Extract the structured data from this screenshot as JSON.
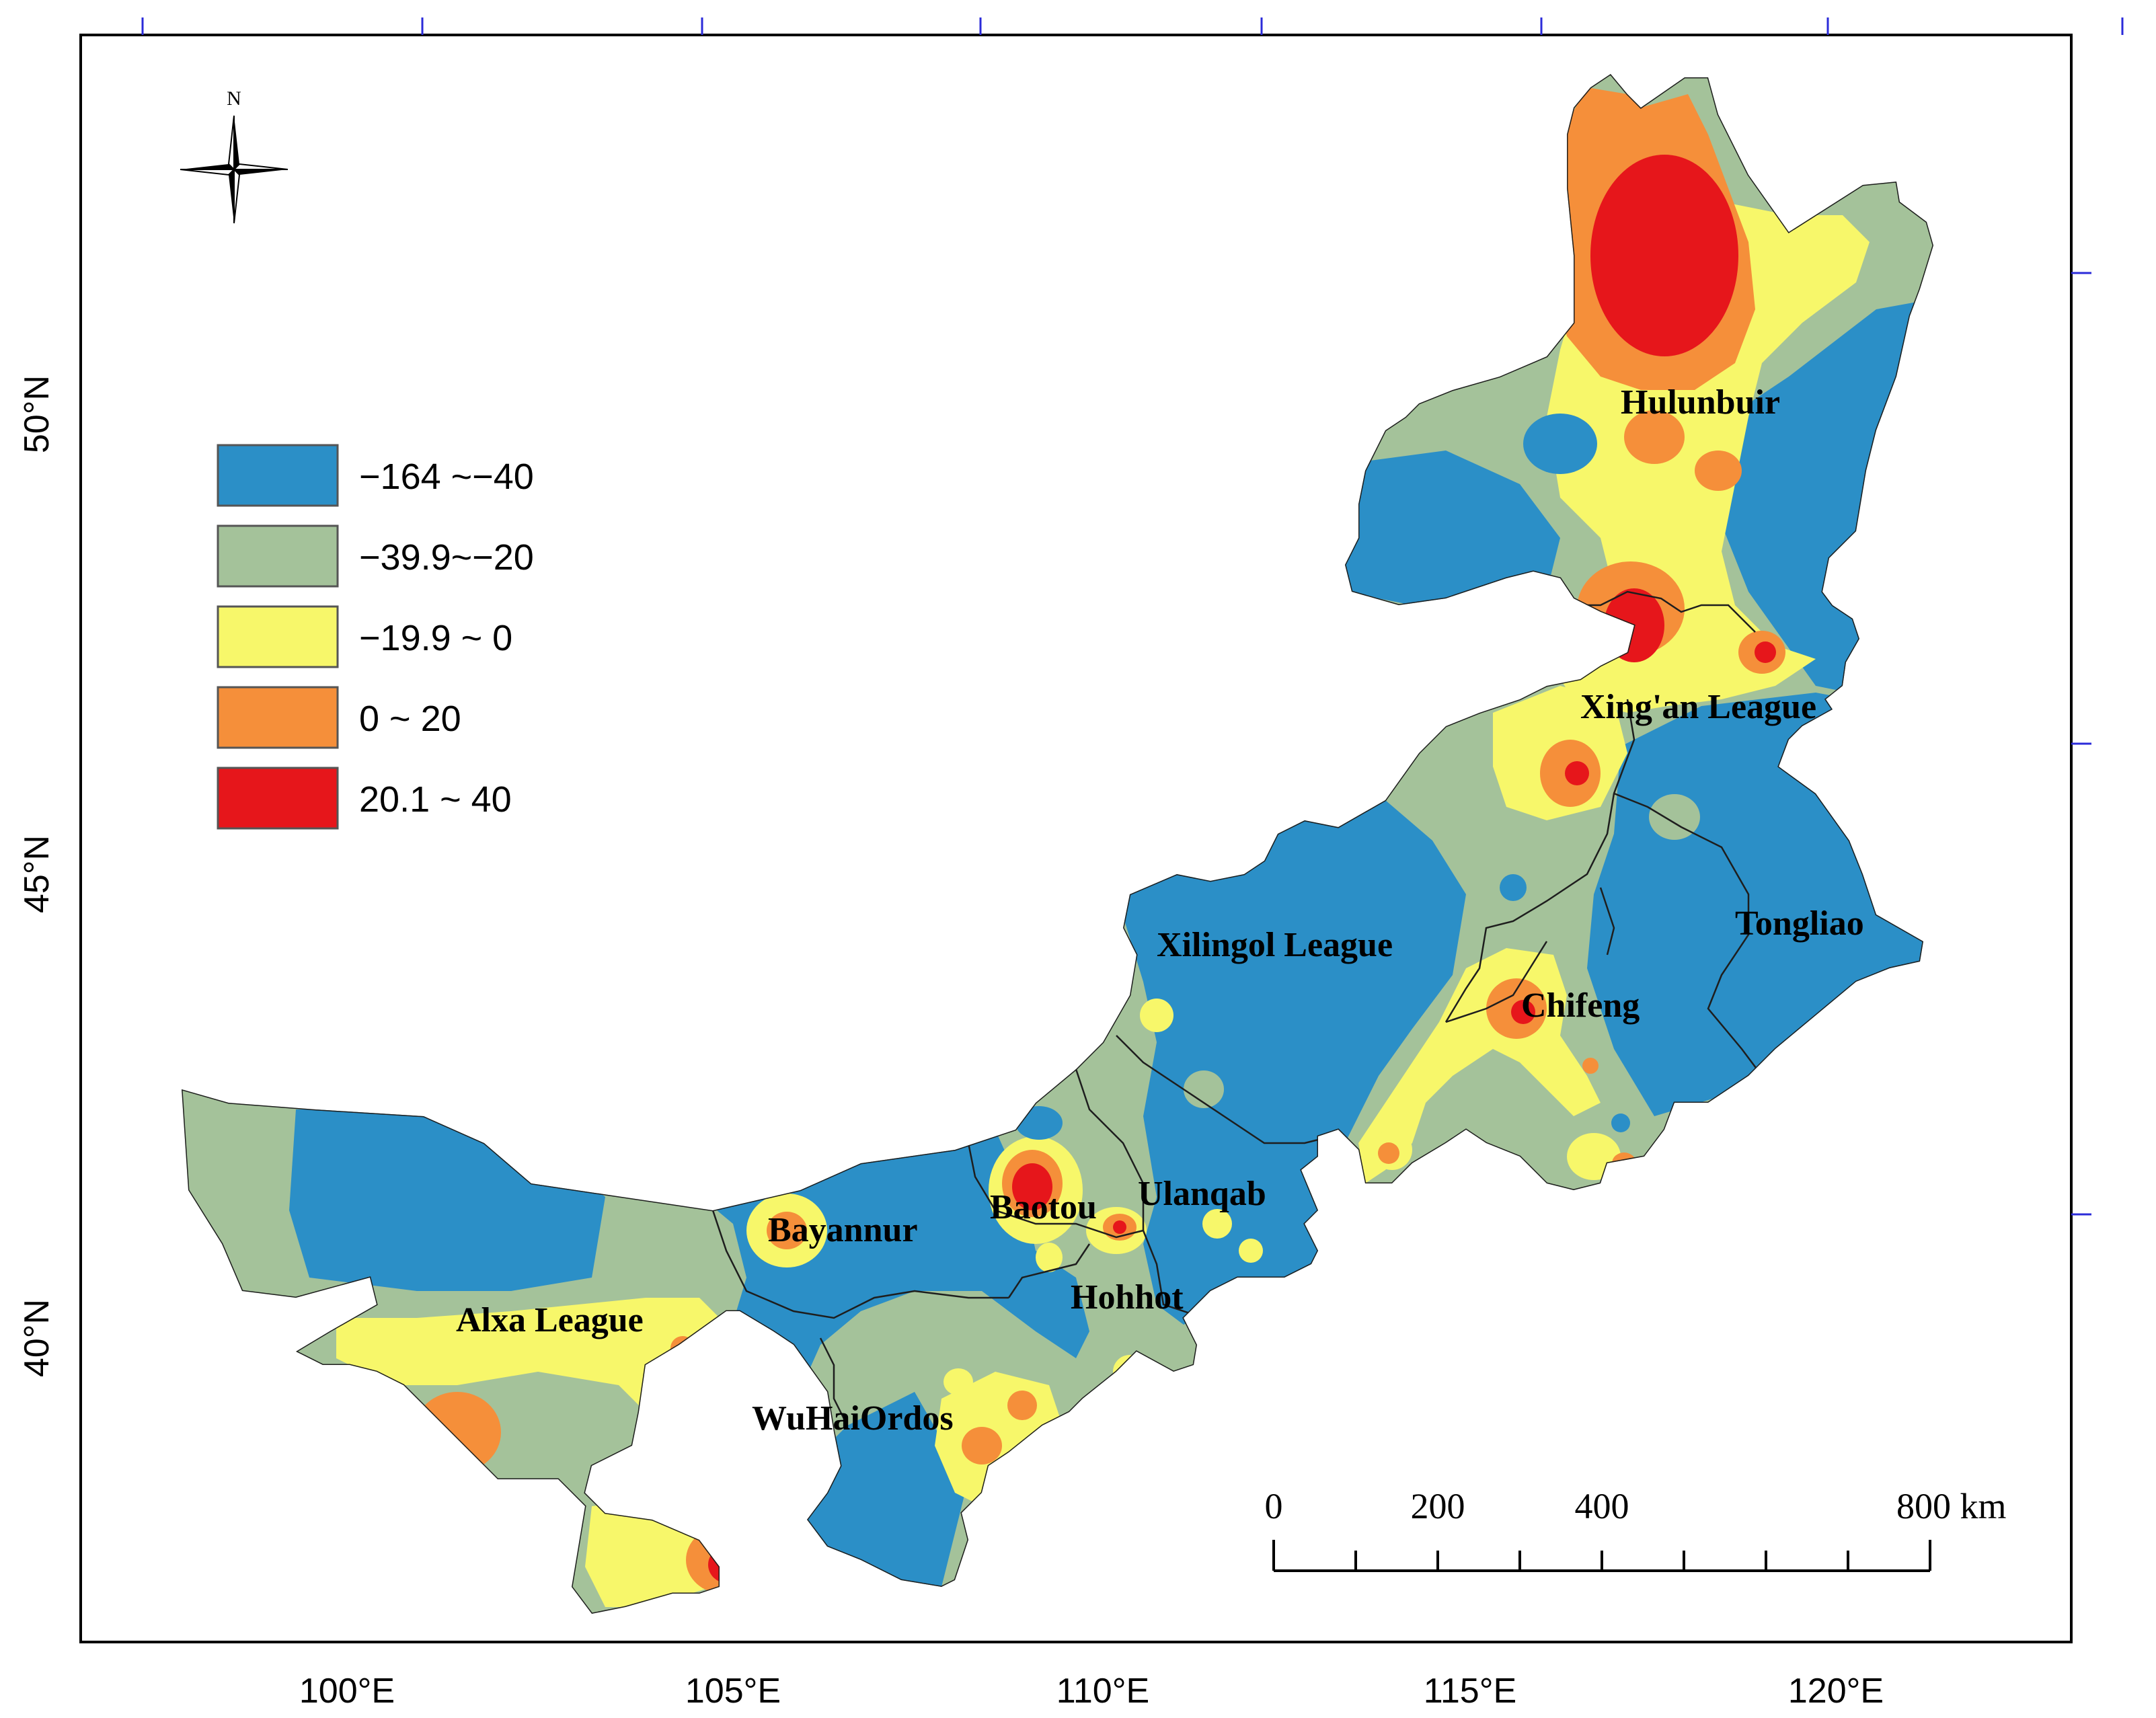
{
  "map": {
    "lon_ticks": [
      "100°E",
      "105°E",
      "110°E",
      "115°E",
      "120°E"
    ],
    "lat_ticks": [
      "50°N",
      "45°N",
      "40°N"
    ],
    "north_label": "N",
    "legend": [
      {
        "label": "−164 ~−40",
        "color": "#2b8fc7"
      },
      {
        "label": "−39.9~−20",
        "color": "#a4c29a"
      },
      {
        "label": "−19.9 ~ 0",
        "color": "#f7f76a"
      },
      {
        "label": "0 ~ 20",
        "color": "#f58f3a"
      },
      {
        "label": "20.1 ~ 40",
        "color": "#e6161b"
      }
    ],
    "scale_bar": {
      "labels": [
        "0",
        "200",
        "400",
        "800 km"
      ]
    },
    "regions": [
      "Hulunbuir",
      "Xing'an League",
      "Tongliao",
      "Xilingol League",
      "Chifeng",
      "Ulanqab",
      "Baotou",
      "Bayannur",
      "Hohhot",
      "Alxa League",
      "WuHaiOrdos"
    ]
  }
}
